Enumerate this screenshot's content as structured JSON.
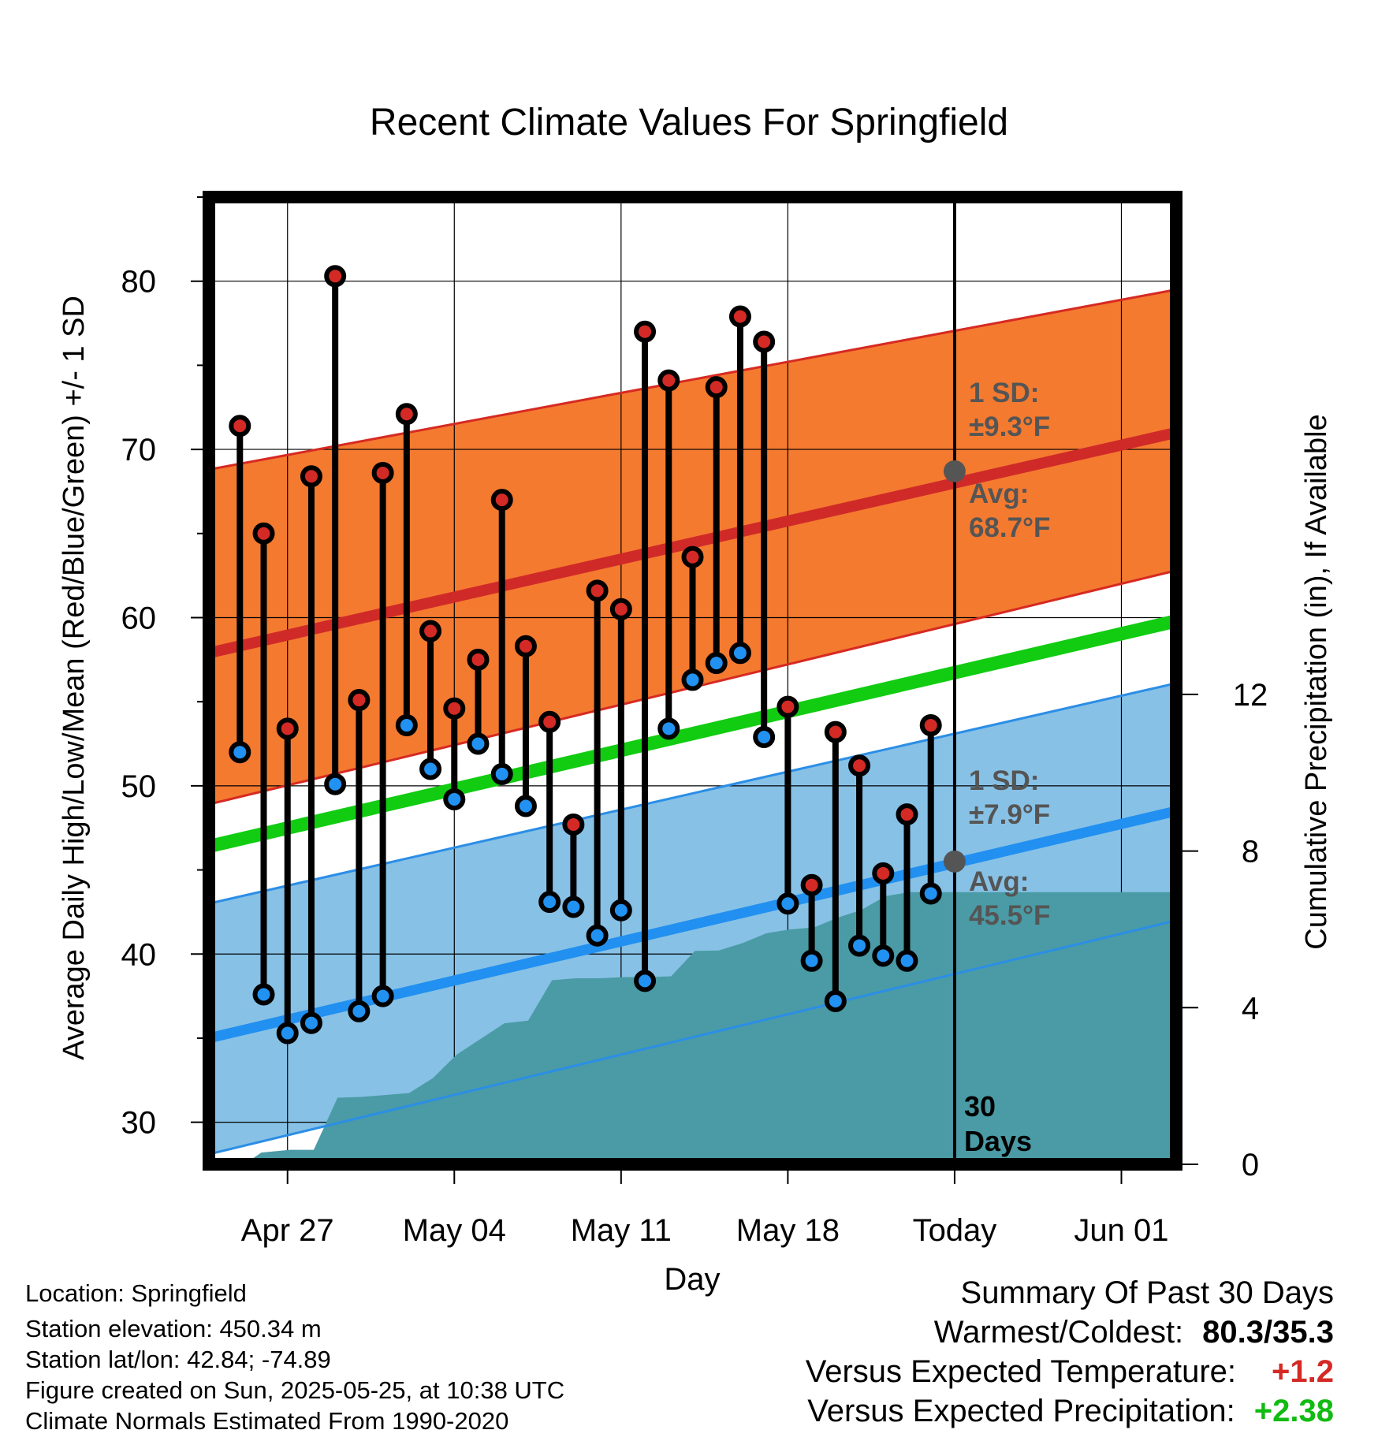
{
  "title": "Recent Climate Values For Springfield",
  "colors": {
    "high_band": "#f47a30",
    "high_band_edge": "#d62a22",
    "avg_high_line": "#d02a28",
    "low_band": "#87c1e6",
    "low_band_edge": "#2b8ee6",
    "avg_low_line": "#2190f0",
    "avg_mean_line": "#11cc11",
    "precip_fill": "#4a9ba5",
    "high_marker": "#d42a25",
    "low_marker": "#2192f2",
    "today_marker": "#555555",
    "annotation_text": "#555555",
    "positive_temp": "#d42a25",
    "positive_precip": "#11bb11"
  },
  "chart_data": {
    "type": "line",
    "xlabel": "Day",
    "ylabel": "Average Daily High/Low/Mean (Red/Blue/Green) +/- 1 SD",
    "y2label": "Cumulative Precipitation (in), If Available",
    "x_tick_labels": [
      "Apr 27",
      "May 04",
      "May 11",
      "May 18",
      "Today",
      "Jun 01"
    ],
    "x_tick_days": [
      2,
      9,
      16,
      23,
      30,
      37
    ],
    "xlim_days": [
      -1.3,
      39.3
    ],
    "ylim": [
      27.5,
      85
    ],
    "y_ticks": [
      30,
      40,
      50,
      60,
      70,
      80
    ],
    "y2lim": [
      0,
      24.7
    ],
    "y2_ticks": [
      0,
      4,
      8,
      12
    ],
    "grid": true,
    "normals": {
      "avg_high": {
        "start": 57.9,
        "end": 71.0
      },
      "high_band": {
        "start_upper": 68.8,
        "end_upper": 79.5,
        "start_lower": 48.9,
        "end_lower": 62.8
      },
      "avg_mean": {
        "start": 46.4,
        "end": 59.8
      },
      "avg_low": {
        "start": 35.0,
        "end": 48.5
      },
      "low_band": {
        "start_upper": 43.0,
        "end_upper": 56.1,
        "start_lower": 28.1,
        "end_lower": 42.0
      }
    },
    "daily_high": [
      71.4,
      65.0,
      53.4,
      68.4,
      80.3,
      55.1,
      68.6,
      72.1,
      59.2,
      54.6,
      57.5,
      67.0,
      58.3,
      53.8,
      47.7,
      61.6,
      60.5,
      77.0,
      74.1,
      63.6,
      73.7,
      77.9,
      76.4,
      54.7,
      44.1,
      53.2,
      51.2,
      44.8,
      48.3,
      53.6
    ],
    "daily_low": [
      52.0,
      37.6,
      35.3,
      35.9,
      50.1,
      36.6,
      37.5,
      53.6,
      51.0,
      49.2,
      52.5,
      50.7,
      48.8,
      43.1,
      42.8,
      41.1,
      42.6,
      38.4,
      53.4,
      56.3,
      57.3,
      57.9,
      52.9,
      43.0,
      39.6,
      37.2,
      40.5,
      39.9,
      39.6,
      43.6
    ],
    "cumulative_precip": {
      "days": [
        0,
        0.3,
        0.9,
        2.1,
        3.1,
        4.1,
        5.1,
        6.1,
        7.1,
        8.1,
        9.1,
        10.1,
        11.1,
        12.1,
        13.1,
        14.1,
        15.1,
        16.1,
        17.1,
        18.1,
        19.1,
        20.1,
        21.1,
        22.1,
        23.1,
        24.1,
        25.1,
        26.1,
        27.1,
        28.1,
        29.1,
        30.1,
        39.3
      ],
      "values": [
        0,
        0.05,
        0.3,
        0.37,
        0.37,
        1.7,
        1.72,
        1.77,
        1.82,
        2.2,
        2.8,
        3.2,
        3.6,
        3.67,
        4.7,
        4.75,
        4.75,
        4.78,
        4.78,
        4.8,
        5.45,
        5.46,
        5.65,
        5.9,
        6.0,
        6.05,
        6.3,
        6.5,
        6.85,
        6.95,
        6.95,
        6.95,
        6.95
      ]
    },
    "today_day": 30,
    "annotations": {
      "high_sd": "1 SD:",
      "high_sd_value": "±9.3°F",
      "high_avg": "Avg:",
      "high_avg_value": "68.7°F",
      "today_avg_high": 68.7,
      "low_sd": "1 SD:",
      "low_sd_value": "±7.9°F",
      "low_avg": "Avg:",
      "low_avg_value": "45.5°F",
      "today_avg_low": 45.5,
      "days_count": "30",
      "days_word": "Days"
    }
  },
  "station": {
    "location": "Location: Springfield",
    "elevation": "Station elevation: 450.34 m",
    "latlon": "Station lat/lon: 42.84; -74.89",
    "created": "Figure created on Sun, 2025-05-25, at 10:38 UTC",
    "normals": "Climate Normals Estimated From 1990-2020"
  },
  "summary": {
    "heading": "Summary Of Past 30 Days",
    "warm_cold_label": "Warmest/Coldest:",
    "warm_cold_value": "80.3/35.3",
    "temp_label": "Versus Expected Temperature:",
    "temp_value": "+1.2",
    "precip_label": "Versus Expected Precipitation:",
    "precip_value": "+2.38"
  }
}
